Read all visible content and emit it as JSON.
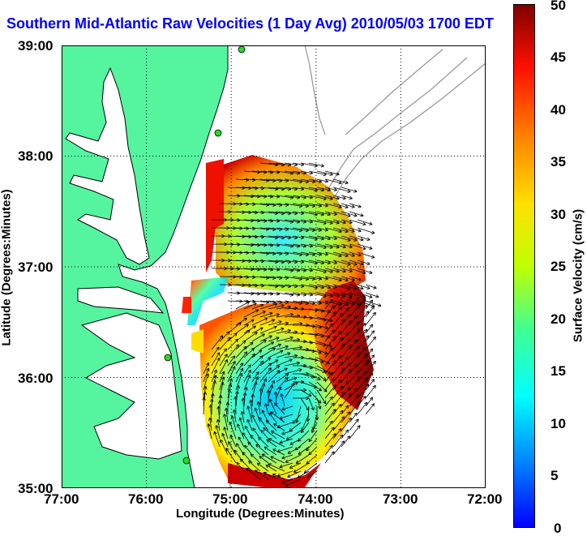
{
  "title": "Southern Mid-Atlantic Raw Velocities (1 Day Avg) 2010/05/03 1700 EDT",
  "axes": {
    "xlabel": "Longitude (Degrees:Minutes)",
    "ylabel": "Latitude (Degrees:Minutes)",
    "x_ticks": [
      "77:00",
      "76:00",
      "75:00",
      "74:00",
      "73:00",
      "72:00"
    ],
    "y_ticks": [
      "39:00",
      "38:00",
      "37:00",
      "36:00",
      "35:00"
    ],
    "xlim": [
      -77,
      -72
    ],
    "ylim": [
      35,
      39
    ],
    "grid": "dotted"
  },
  "colorbar": {
    "label": "Surface Velocity (cm/s)",
    "ticks": [
      "50",
      "45",
      "40",
      "35",
      "30",
      "25",
      "20",
      "15",
      "10",
      "5",
      "0"
    ],
    "range": [
      0,
      50
    ]
  },
  "colors": {
    "land": "#55f5a0",
    "water": "#ffffff",
    "title": "#0000ff",
    "bathymetry": "#9a9a9a",
    "station": "#22dd22"
  }
}
